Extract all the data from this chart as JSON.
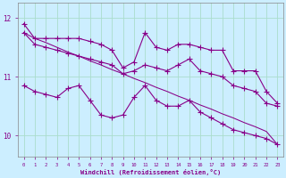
{
  "xlabel": "Windchill (Refroidissement éolien,°C)",
  "bg_color": "#cceeff",
  "grid_color": "#aaddcc",
  "line_color": "#880088",
  "x": [
    0,
    1,
    2,
    3,
    4,
    5,
    6,
    7,
    8,
    9,
    10,
    11,
    12,
    13,
    14,
    15,
    16,
    17,
    18,
    19,
    20,
    21,
    22,
    23
  ],
  "line_upper": [
    11.9,
    11.65,
    11.65,
    11.65,
    11.65,
    11.65,
    11.6,
    11.55,
    11.45,
    11.15,
    11.25,
    11.75,
    11.5,
    11.45,
    11.55,
    11.55,
    11.5,
    11.45,
    11.45,
    11.1,
    11.1,
    11.1,
    10.75,
    10.55
  ],
  "line_mid": [
    11.75,
    11.55,
    11.5,
    11.45,
    11.4,
    11.35,
    11.3,
    11.25,
    11.2,
    11.05,
    11.1,
    11.2,
    11.15,
    11.1,
    11.2,
    11.3,
    11.1,
    11.05,
    11.0,
    10.85,
    10.8,
    10.75,
    10.55,
    10.5
  ],
  "line_lower": [
    10.85,
    10.75,
    10.7,
    10.65,
    10.8,
    10.85,
    10.6,
    10.35,
    10.3,
    10.35,
    10.65,
    10.85,
    10.6,
    10.5,
    10.5,
    10.6,
    10.4,
    10.3,
    10.2,
    10.1,
    10.05,
    10.0,
    9.95,
    9.85
  ],
  "line_straight": [
    11.75,
    11.65,
    11.58,
    11.5,
    11.42,
    11.35,
    11.27,
    11.2,
    11.12,
    11.05,
    10.97,
    10.9,
    10.82,
    10.75,
    10.67,
    10.6,
    10.52,
    10.45,
    10.37,
    10.3,
    10.22,
    10.15,
    10.07,
    9.85
  ],
  "ylim": [
    9.65,
    12.25
  ],
  "xlim": [
    -0.5,
    23.5
  ]
}
